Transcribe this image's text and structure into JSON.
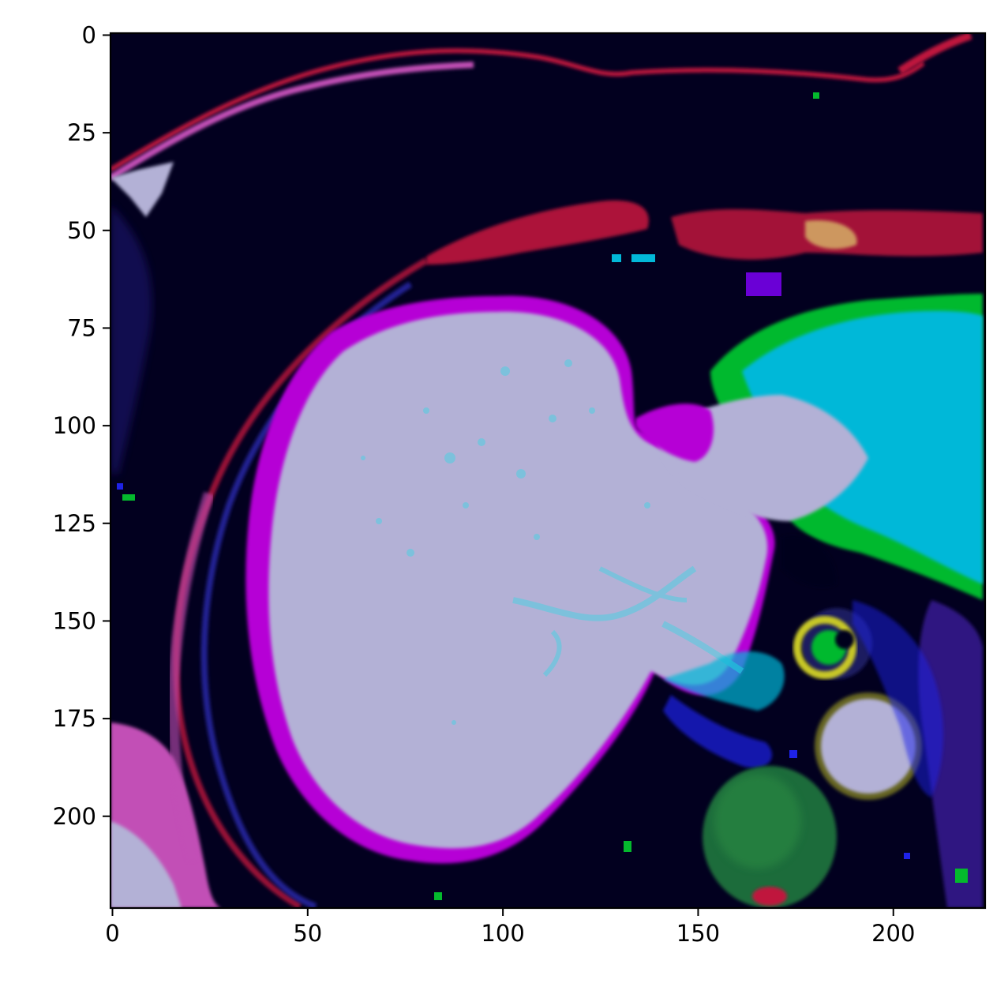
{
  "image": {
    "description_kind": "false-color axial abdominal MRI slice",
    "colormap_colors": {
      "background": "#02001f",
      "liver_fill": "#b3b1d6",
      "liver_rim": "#b605d6",
      "stomach_green": "#04b92d",
      "stomach_cyan": "#02b8d8",
      "edge_red": "#c0183e",
      "aorta": "#b3b1d6",
      "vertebra_green": "#1f6c3a",
      "subq_pink": "#c24fb6",
      "blue_speckle": "#1e22e8",
      "yellow_ring": "#c8c828"
    }
  },
  "chart_data": {
    "type": "image",
    "title": "",
    "xlabel": "",
    "ylabel": "",
    "xlim": [
      0,
      223
    ],
    "ylim": [
      223,
      0
    ],
    "x_ticks": [
      0,
      50,
      100,
      150,
      200
    ],
    "y_ticks": [
      0,
      25,
      50,
      75,
      100,
      125,
      150,
      175,
      200
    ],
    "x_tick_labels": [
      "0",
      "50",
      "100",
      "150",
      "200"
    ],
    "y_tick_labels": [
      "0",
      "25",
      "50",
      "75",
      "100",
      "125",
      "150",
      "175",
      "200"
    ],
    "grid": false,
    "legend": "none"
  }
}
